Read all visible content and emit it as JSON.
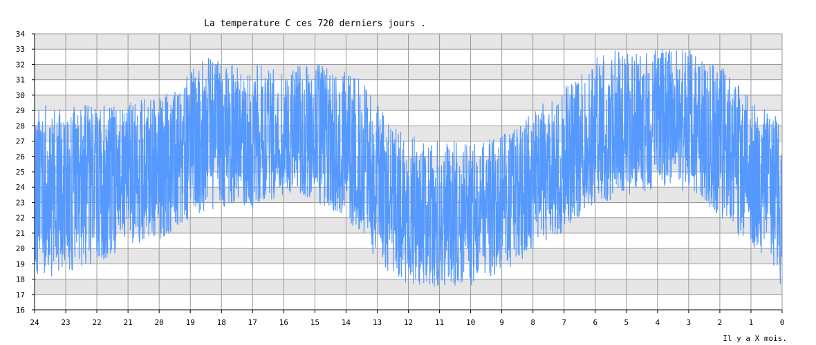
{
  "chart_data": {
    "type": "line",
    "title": "La temperature C ces 720 derniers jours .",
    "xlabel": "Il y a X mois.",
    "ylabel": "",
    "ylim": [
      16,
      34
    ],
    "y_ticks": [
      "16",
      "17",
      "18",
      "19",
      "20",
      "21",
      "22",
      "23",
      "24",
      "25",
      "26",
      "27",
      "28",
      "29",
      "30",
      "31",
      "32",
      "33",
      "34"
    ],
    "xlim": [
      24,
      0
    ],
    "x_ticks": [
      "24",
      "23",
      "22",
      "21",
      "20",
      "19",
      "18",
      "17",
      "16",
      "15",
      "14",
      "13",
      "12",
      "11",
      "10",
      "9",
      "8",
      "7",
      "6",
      "5",
      "4",
      "3",
      "2",
      "1",
      "0"
    ],
    "grid": true,
    "banded_background": true,
    "colors": {
      "series": "#5599ff",
      "band": "#e6e6e6",
      "grid": "#999999",
      "axis": "#000000"
    },
    "series": [
      {
        "x": [
          24,
          23.5,
          23,
          22.5,
          22,
          21.5,
          21,
          20.5,
          20,
          19.5,
          19,
          18.5,
          18,
          17.5,
          17,
          16.5,
          16,
          15.5,
          15,
          14.5,
          14,
          13.5,
          13,
          12.5,
          12,
          11.5,
          11,
          10.5,
          10,
          9.5,
          9,
          8.5,
          8,
          7.5,
          7,
          6.5,
          6,
          5.5,
          5,
          4.5,
          4,
          3.5,
          3,
          2.5,
          2,
          1.5,
          1,
          0.5,
          0
        ],
        "y_center": [
          23,
          23.5,
          24,
          24,
          24,
          24,
          24,
          24.5,
          25,
          25.5,
          26,
          26.5,
          27,
          27,
          27,
          27,
          27,
          27,
          27,
          26.5,
          26,
          25,
          24,
          23,
          22,
          22,
          22,
          22,
          22,
          22.5,
          23,
          23.5,
          24,
          25,
          25.5,
          26,
          26.5,
          27,
          27.5,
          27.5,
          28,
          28,
          27.5,
          27,
          26.5,
          25.5,
          24.5,
          24,
          23.5
        ],
        "y_low": [
          18,
          18,
          18.5,
          18.5,
          19,
          19.5,
          20,
          20.5,
          20.5,
          21,
          22,
          22.5,
          22.5,
          23,
          22.5,
          23,
          23.5,
          23.5,
          23,
          22.5,
          22,
          20.5,
          19,
          18,
          17.5,
          17.5,
          17.5,
          17.5,
          17.5,
          18,
          18.5,
          19,
          20,
          20.5,
          21,
          22,
          23,
          23,
          23.5,
          23.5,
          24,
          24,
          23.5,
          23,
          22,
          21,
          20,
          19,
          17
        ],
        "y_high": [
          29,
          29.5,
          29,
          29.5,
          29.5,
          29.5,
          29.5,
          30,
          30,
          30.5,
          31.5,
          32.5,
          32.5,
          32,
          32,
          32,
          31.5,
          32,
          32,
          32,
          31.5,
          31,
          29.5,
          28,
          27.5,
          27,
          27,
          27,
          27,
          27,
          27.5,
          28,
          29,
          30,
          30.5,
          31.5,
          32.5,
          33,
          33,
          33,
          33,
          33,
          33,
          32.5,
          32,
          31,
          30,
          29,
          28.5
        ]
      }
    ]
  }
}
